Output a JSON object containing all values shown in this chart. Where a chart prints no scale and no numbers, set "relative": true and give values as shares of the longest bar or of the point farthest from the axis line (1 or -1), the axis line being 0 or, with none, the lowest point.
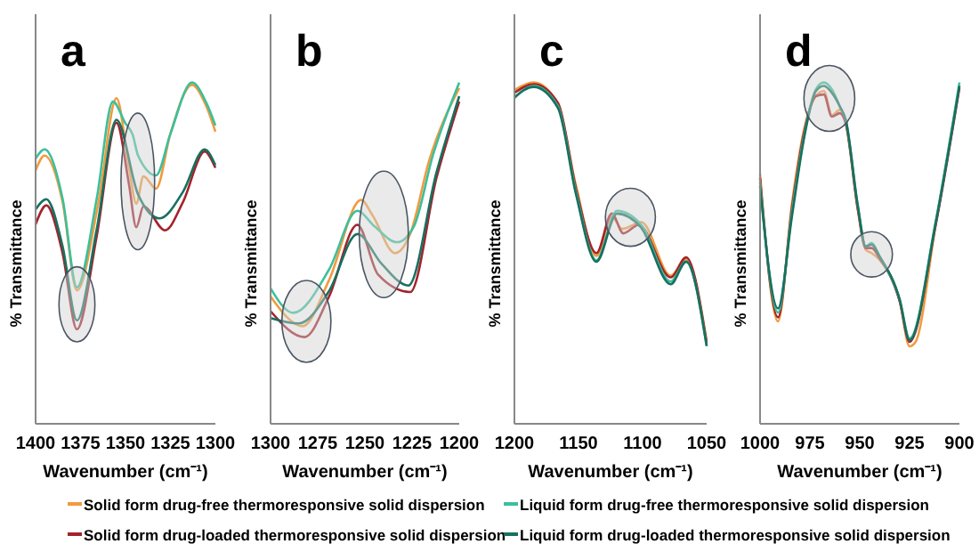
{
  "chart_data": [
    {
      "type": "line",
      "title": "a",
      "xlabel": "Wavenumber (cm⁻¹)",
      "ylabel": "% Transmittance",
      "relative": true,
      "xlim": [
        1400,
        1300
      ],
      "xticks": [
        1400,
        1375,
        1350,
        1325,
        1300
      ],
      "tick_labels": "x",
      "legend": "bottom",
      "marker": "none",
      "line_style": "solid",
      "series": [
        {
          "name": "Solid form drug-free thermoresponsive solid dispersion",
          "color": "#f29a3e",
          "x": [
            1400,
            1395,
            1385,
            1377,
            1365,
            1355,
            1348,
            1344,
            1340,
            1333,
            1325,
            1313,
            1305,
            1300
          ],
          "values": [
            0.742,
            0.786,
            0.65,
            0.391,
            0.65,
            0.954,
            0.75,
            0.645,
            0.725,
            0.689,
            0.85,
            0.993,
            0.93,
            0.856
          ]
        },
        {
          "name": "Solid form drug-loaded thermoresponsive solid dispersion",
          "color": "#a3232c",
          "x": [
            1400,
            1394,
            1385,
            1377,
            1366,
            1355,
            1348,
            1344,
            1340,
            1328,
            1318,
            1306,
            1300
          ],
          "values": [
            0.584,
            0.64,
            0.5,
            0.277,
            0.55,
            0.882,
            0.7,
            0.576,
            0.637,
            0.567,
            0.65,
            0.798,
            0.75
          ]
        },
        {
          "name": "Liquid form drug-free thermoresponsive solid dispersion",
          "color": "#3cbf9c",
          "x": [
            1400,
            1395,
            1385,
            1377,
            1366,
            1357,
            1350,
            1346,
            1343,
            1333,
            1325,
            1313,
            1305,
            1300
          ],
          "values": [
            0.777,
            0.804,
            0.66,
            0.4,
            0.66,
            0.944,
            0.88,
            0.847,
            0.786,
            0.728,
            0.85,
            1,
            0.94,
            0.874
          ]
        },
        {
          "name": "Liquid form drug-loaded thermoresponsive solid dispersion",
          "color": "#17705f",
          "x": [
            1400,
            1394,
            1385,
            1377,
            1366,
            1355,
            1343,
            1331,
            1318,
            1306,
            1300
          ],
          "values": [
            0.628,
            0.658,
            0.52,
            0.303,
            0.57,
            0.891,
            0.672,
            0.602,
            0.68,
            0.804,
            0.758
          ]
        }
      ]
    },
    {
      "type": "line",
      "title": "b",
      "xlabel": "Wavenumber (cm⁻¹)",
      "ylabel": "% Transmittance",
      "relative": true,
      "xlim": [
        1300,
        1200
      ],
      "xticks": [
        1300,
        1275,
        1250,
        1225,
        1200
      ],
      "tick_labels": "x",
      "marker": "none",
      "line_style": "solid",
      "series": [
        {
          "color": "#f29a3e",
          "x": [
            1300,
            1283,
            1269,
            1252,
            1246,
            1234,
            1226,
            1216,
            1200
          ],
          "values": [
            0.373,
            0.286,
            0.421,
            0.656,
            0.611,
            0.5,
            0.556,
            0.77,
            0.984
          ]
        },
        {
          "color": "#a3232c",
          "x": [
            1300,
            1282,
            1269,
            1254,
            1243,
            1226,
            1212,
            1200
          ],
          "values": [
            0.33,
            0.254,
            0.373,
            0.583,
            0.437,
            0.386,
            0.722,
            0.944
          ]
        },
        {
          "color": "#3cbf9c",
          "x": [
            1300,
            1288,
            1269,
            1254,
            1245,
            1233,
            1224,
            1214,
            1200
          ],
          "values": [
            0.397,
            0.325,
            0.452,
            0.624,
            0.579,
            0.532,
            0.579,
            0.786,
            1
          ]
        },
        {
          "color": "#17705f",
          "x": [
            1300,
            1285,
            1269,
            1254,
            1241,
            1227,
            1212,
            1200
          ],
          "values": [
            0.31,
            0.294,
            0.389,
            0.556,
            0.468,
            0.405,
            0.738,
            0.96
          ]
        }
      ]
    },
    {
      "type": "line",
      "title": "c",
      "xlabel": "Wavenumber (cm⁻¹)",
      "ylabel": "% Transmittance",
      "relative": true,
      "xlim": [
        1200,
        1050
      ],
      "xticks": [
        1200,
        1150,
        1100,
        1050
      ],
      "tick_labels": "x",
      "marker": "none",
      "line_style": "solid",
      "series": [
        {
          "color": "#f29a3e",
          "x": [
            1200,
            1185,
            1166,
            1152,
            1136,
            1124,
            1116,
            1101,
            1078,
            1066,
            1050
          ],
          "values": [
            0.978,
            1,
            0.937,
            0.698,
            0.492,
            0.607,
            0.571,
            0.591,
            0.434,
            0.483,
            0.244
          ]
        },
        {
          "color": "#a3232c",
          "x": [
            1200,
            1185,
            1166,
            1152,
            1136,
            1124,
            1115,
            1103,
            1078,
            1066,
            1050
          ],
          "values": [
            0.97,
            0.995,
            0.94,
            0.69,
            0.5,
            0.616,
            0.558,
            0.583,
            0.429,
            0.488,
            0.236
          ]
        },
        {
          "color": "#3cbf9c",
          "x": [
            1200,
            1185,
            1166,
            1152,
            1136,
            1120,
            1101,
            1078,
            1066,
            1050
          ],
          "values": [
            0.954,
            0.99,
            0.93,
            0.68,
            0.479,
            0.624,
            0.583,
            0.417,
            0.475,
            0.228
          ]
        },
        {
          "color": "#17705f",
          "x": [
            1200,
            1185,
            1166,
            1152,
            1136,
            1120,
            1101,
            1078,
            1066,
            1050
          ],
          "values": [
            0.957,
            0.987,
            0.925,
            0.673,
            0.475,
            0.616,
            0.574,
            0.409,
            0.475,
            0.228
          ]
        }
      ]
    },
    {
      "type": "line",
      "title": "d",
      "xlabel": "Wavenumber (cm⁻¹)",
      "ylabel": "% Transmittance",
      "relative": true,
      "xlim": [
        1000,
        900
      ],
      "xticks": [
        1000,
        975,
        950,
        925,
        900
      ],
      "tick_labels": "x",
      "marker": "none",
      "line_style": "solid",
      "series": [
        {
          "color": "#f29a3e",
          "x": [
            1000,
            991,
            984,
            978,
            972,
            968,
            964,
            960,
            957,
            951,
            947,
            944,
            940,
            930,
            925,
            922,
            912,
            900
          ],
          "values": [
            0.732,
            0.3,
            0.645,
            0.86,
            0.96,
            0.975,
            0.904,
            0.92,
            0.88,
            0.63,
            0.51,
            0.5,
            0.48,
            0.36,
            0.227,
            0.24,
            0.58,
            0.99
          ]
        },
        {
          "color": "#a3232c",
          "x": [
            1000,
            991,
            984,
            978,
            972,
            968,
            964,
            960,
            957,
            951,
            947,
            944,
            940,
            930,
            925,
            912,
            900
          ],
          "values": [
            0.72,
            0.312,
            0.632,
            0.852,
            0.96,
            0.965,
            0.9,
            0.91,
            0.88,
            0.63,
            0.515,
            0.515,
            0.485,
            0.36,
            0.24,
            0.58,
            0.985
          ]
        },
        {
          "color": "#3cbf9c",
          "x": [
            1000,
            991,
            984,
            978,
            972,
            968,
            964,
            960,
            957,
            951,
            947,
            944,
            940,
            930,
            925,
            912,
            900
          ],
          "values": [
            0.708,
            0.326,
            0.62,
            0.842,
            0.98,
            1,
            0.98,
            0.93,
            0.89,
            0.64,
            0.52,
            0.53,
            0.49,
            0.365,
            0.25,
            0.59,
            1
          ]
        },
        {
          "color": "#17705f",
          "x": [
            1000,
            991,
            984,
            978,
            972,
            968,
            964,
            960,
            957,
            951,
            947,
            944,
            940,
            930,
            925,
            912,
            900
          ],
          "values": [
            0.696,
            0.338,
            0.608,
            0.835,
            0.975,
            0.99,
            0.97,
            0.93,
            0.89,
            0.64,
            0.52,
            0.525,
            0.49,
            0.365,
            0.245,
            0.585,
            0.99
          ]
        }
      ]
    }
  ]
}
